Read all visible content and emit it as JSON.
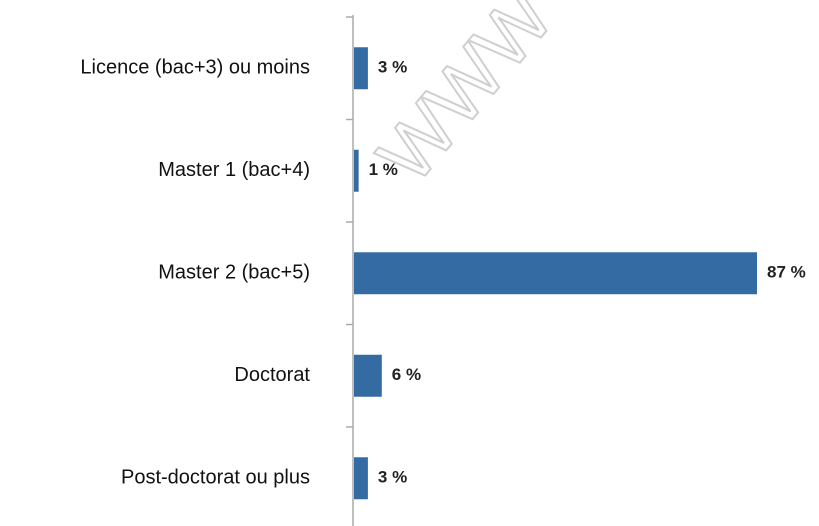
{
  "chart_data": {
    "type": "bar",
    "orientation": "horizontal",
    "categories": [
      "Licence (bac+3) ou moins",
      "Master 1 (bac+4)",
      "Master 2 (bac+5)",
      "Doctorat",
      "Post-doctorat ou plus"
    ],
    "values": [
      3,
      1,
      87,
      6,
      3
    ],
    "value_labels": [
      "3 %",
      "1 %",
      "87 %",
      "6 %",
      "3 %"
    ],
    "color": "#356ba3",
    "watermark": "WWW"
  }
}
